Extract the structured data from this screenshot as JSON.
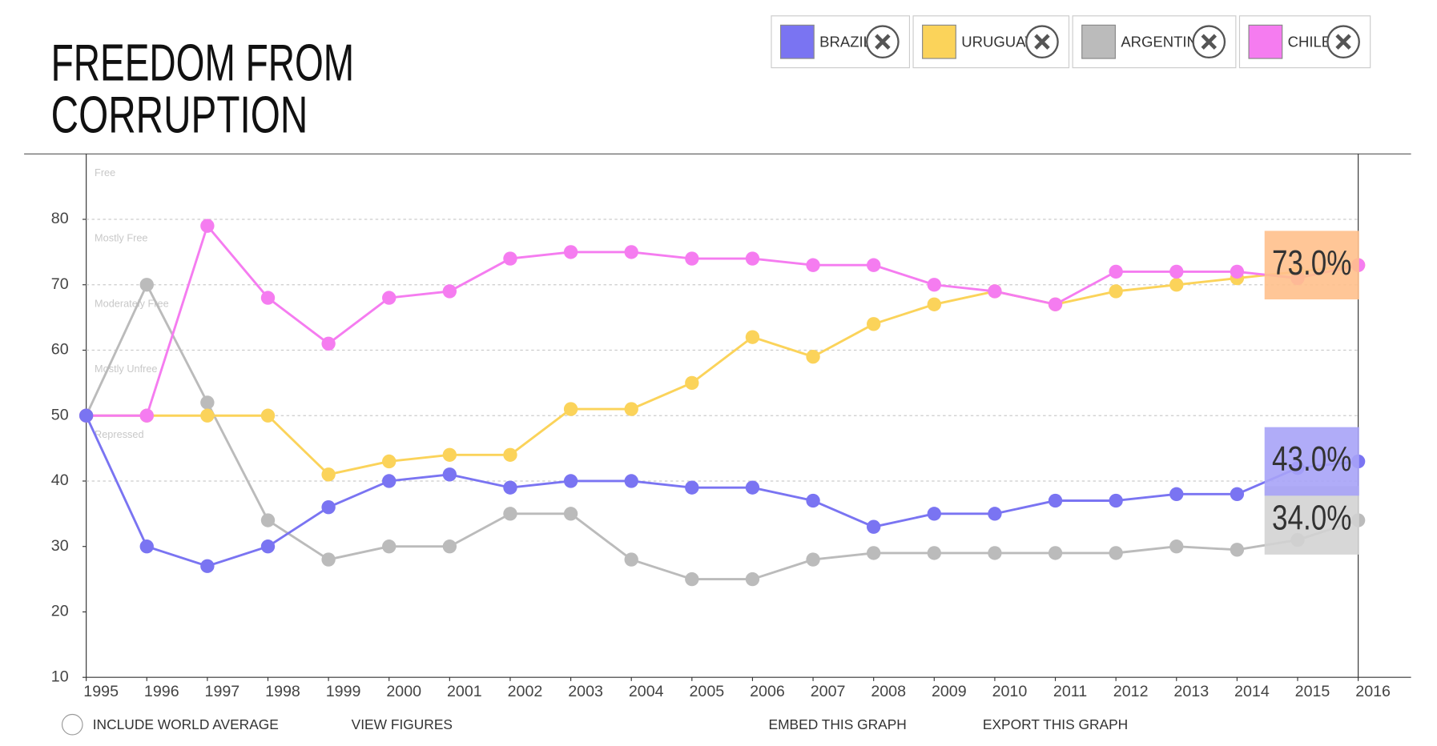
{
  "chart_data": {
    "type": "line",
    "title": [
      "FREEDOM FROM",
      "CORRUPTION"
    ],
    "x": [
      1995,
      1996,
      1997,
      1998,
      1999,
      2000,
      2001,
      2002,
      2003,
      2004,
      2005,
      2006,
      2007,
      2008,
      2009,
      2010,
      2011,
      2012,
      2013,
      2014,
      2015,
      2016
    ],
    "xlim": [
      1995,
      2016
    ],
    "xticks": [
      1995,
      1996,
      1997,
      1998,
      1999,
      2000,
      2001,
      2002,
      2003,
      2004,
      2005,
      2006,
      2007,
      2008,
      2009,
      2010,
      2011,
      2012,
      2013,
      2014,
      2015,
      2016
    ],
    "ylim": [
      10,
      90
    ],
    "yticks": [
      10,
      20,
      30,
      40,
      50,
      60,
      70,
      80
    ],
    "zones": [
      {
        "label": "Free",
        "from": 80,
        "to": 90
      },
      {
        "label": "Mostly Free",
        "from": 70,
        "to": 80
      },
      {
        "label": "Moderately Free",
        "from": 60,
        "to": 70
      },
      {
        "label": "Mostly Unfree",
        "from": 50,
        "to": 60
      },
      {
        "label": "Repressed",
        "from": 40,
        "to": 50
      }
    ],
    "series": [
      {
        "name": "ARGENTINA",
        "color": "#bbbbbb",
        "label_color": "#d3d3d3",
        "values": [
          50,
          70,
          52,
          34,
          28,
          30,
          30,
          35,
          35,
          28,
          25,
          25,
          28,
          29,
          29,
          29,
          29,
          29,
          30,
          29.5,
          31,
          34
        ],
        "value_labels": [
          null,
          null,
          null,
          null,
          null,
          null,
          null,
          null,
          null,
          null,
          null,
          null,
          null,
          null,
          null,
          null,
          null,
          null,
          null,
          null,
          null,
          "34.0%"
        ]
      },
      {
        "name": "URUGUAY",
        "color": "#fbd35a",
        "label_color": "#ffc08c",
        "values": [
          50,
          50,
          50,
          50,
          41,
          43,
          44,
          44,
          51,
          51,
          55,
          62,
          59,
          64,
          67,
          69,
          67,
          69,
          70,
          71,
          72,
          73
        ],
        "value_labels": [
          null,
          null,
          null,
          null,
          null,
          null,
          null,
          null,
          null,
          null,
          null,
          null,
          null,
          null,
          null,
          null,
          null,
          null,
          null,
          null,
          null,
          "73.0%"
        ]
      },
      {
        "name": "CHILE",
        "color": "#f57cf0",
        "values": [
          50,
          50,
          79,
          68,
          61,
          68,
          69,
          74,
          75,
          75,
          74,
          74,
          73,
          73,
          70,
          69,
          67,
          72,
          72,
          72,
          71,
          73
        ]
      },
      {
        "name": "BRAZIL",
        "color": "#7a74f2",
        "label_color": "#a7a3f7",
        "values": [
          50,
          30,
          27,
          30,
          36,
          40,
          41,
          39,
          40,
          40,
          39,
          39,
          37,
          33,
          35,
          35,
          37,
          37,
          38,
          38,
          42,
          43
        ],
        "value_labels": [
          null,
          null,
          null,
          null,
          null,
          null,
          null,
          null,
          null,
          null,
          null,
          null,
          null,
          null,
          null,
          null,
          null,
          null,
          null,
          null,
          null,
          "43.0%"
        ]
      }
    ],
    "legend_order": [
      3,
      1,
      0,
      2
    ],
    "footer": [
      "INCLUDE WORLD AVERAGE",
      "VIEW FIGURES",
      "EMBED THIS GRAPH",
      "EXPORT THIS GRAPH"
    ]
  }
}
